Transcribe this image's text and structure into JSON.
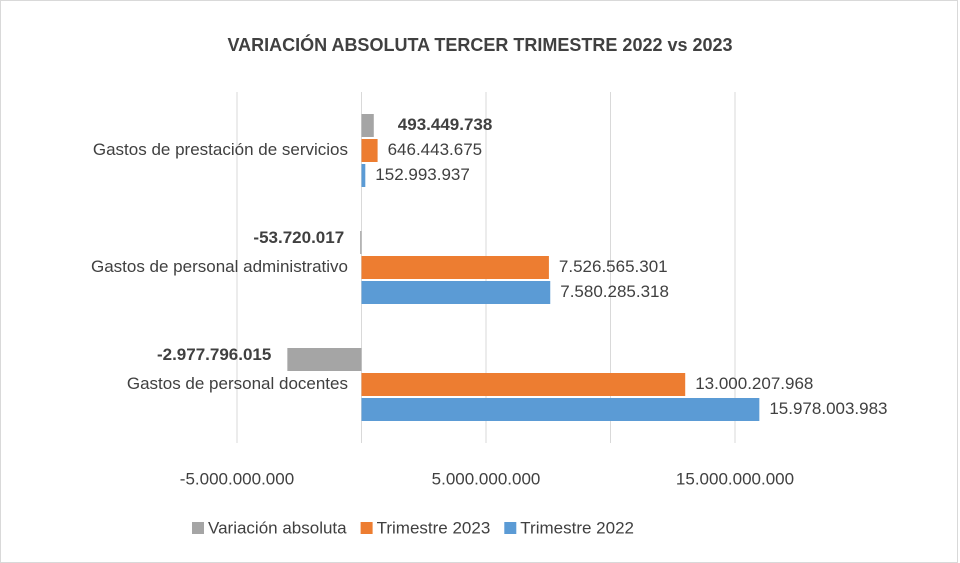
{
  "chart_data": {
    "type": "hbar",
    "title": "VARIACIÓN ABSOLUTA TERCER TRIMESTRE 2022 vs 2023",
    "categories": [
      "Gastos de personal docentes",
      "Gastos de personal administrativo",
      "Gastos de prestación de servicios"
    ],
    "series": [
      {
        "name": "Trimestre 2022",
        "color": "#5b9bd5",
        "values": [
          15978003983,
          7580285318,
          152993937
        ],
        "value_labels": [
          "15.978.003.983",
          "7.580.285.318",
          "152.993.937"
        ]
      },
      {
        "name": "Trimestre 2023",
        "color": "#ed7d31",
        "values": [
          13000207968,
          7526565301,
          646443675
        ],
        "value_labels": [
          "13.000.207.968",
          "7.526.565.301",
          "646.443.675"
        ]
      },
      {
        "name": "Variación absoluta",
        "color": "#a5a5a5",
        "values": [
          -2977796015,
          -53720017,
          493449738
        ],
        "value_labels": [
          "-2.977.796.015",
          "-53.720.017",
          "493.449.738"
        ],
        "bold_labels": true
      }
    ],
    "xlim": [
      -5000000000,
      15000000000
    ],
    "xticks": [
      {
        "value": -5000000000,
        "label": "-5.000.000.000"
      },
      {
        "value": 5000000000,
        "label": "5.000.000.000"
      },
      {
        "value": 15000000000,
        "label": "15.000.000.000"
      }
    ],
    "minor_grid": [
      0,
      10000000000
    ],
    "grid": true,
    "legend": "bottom"
  }
}
